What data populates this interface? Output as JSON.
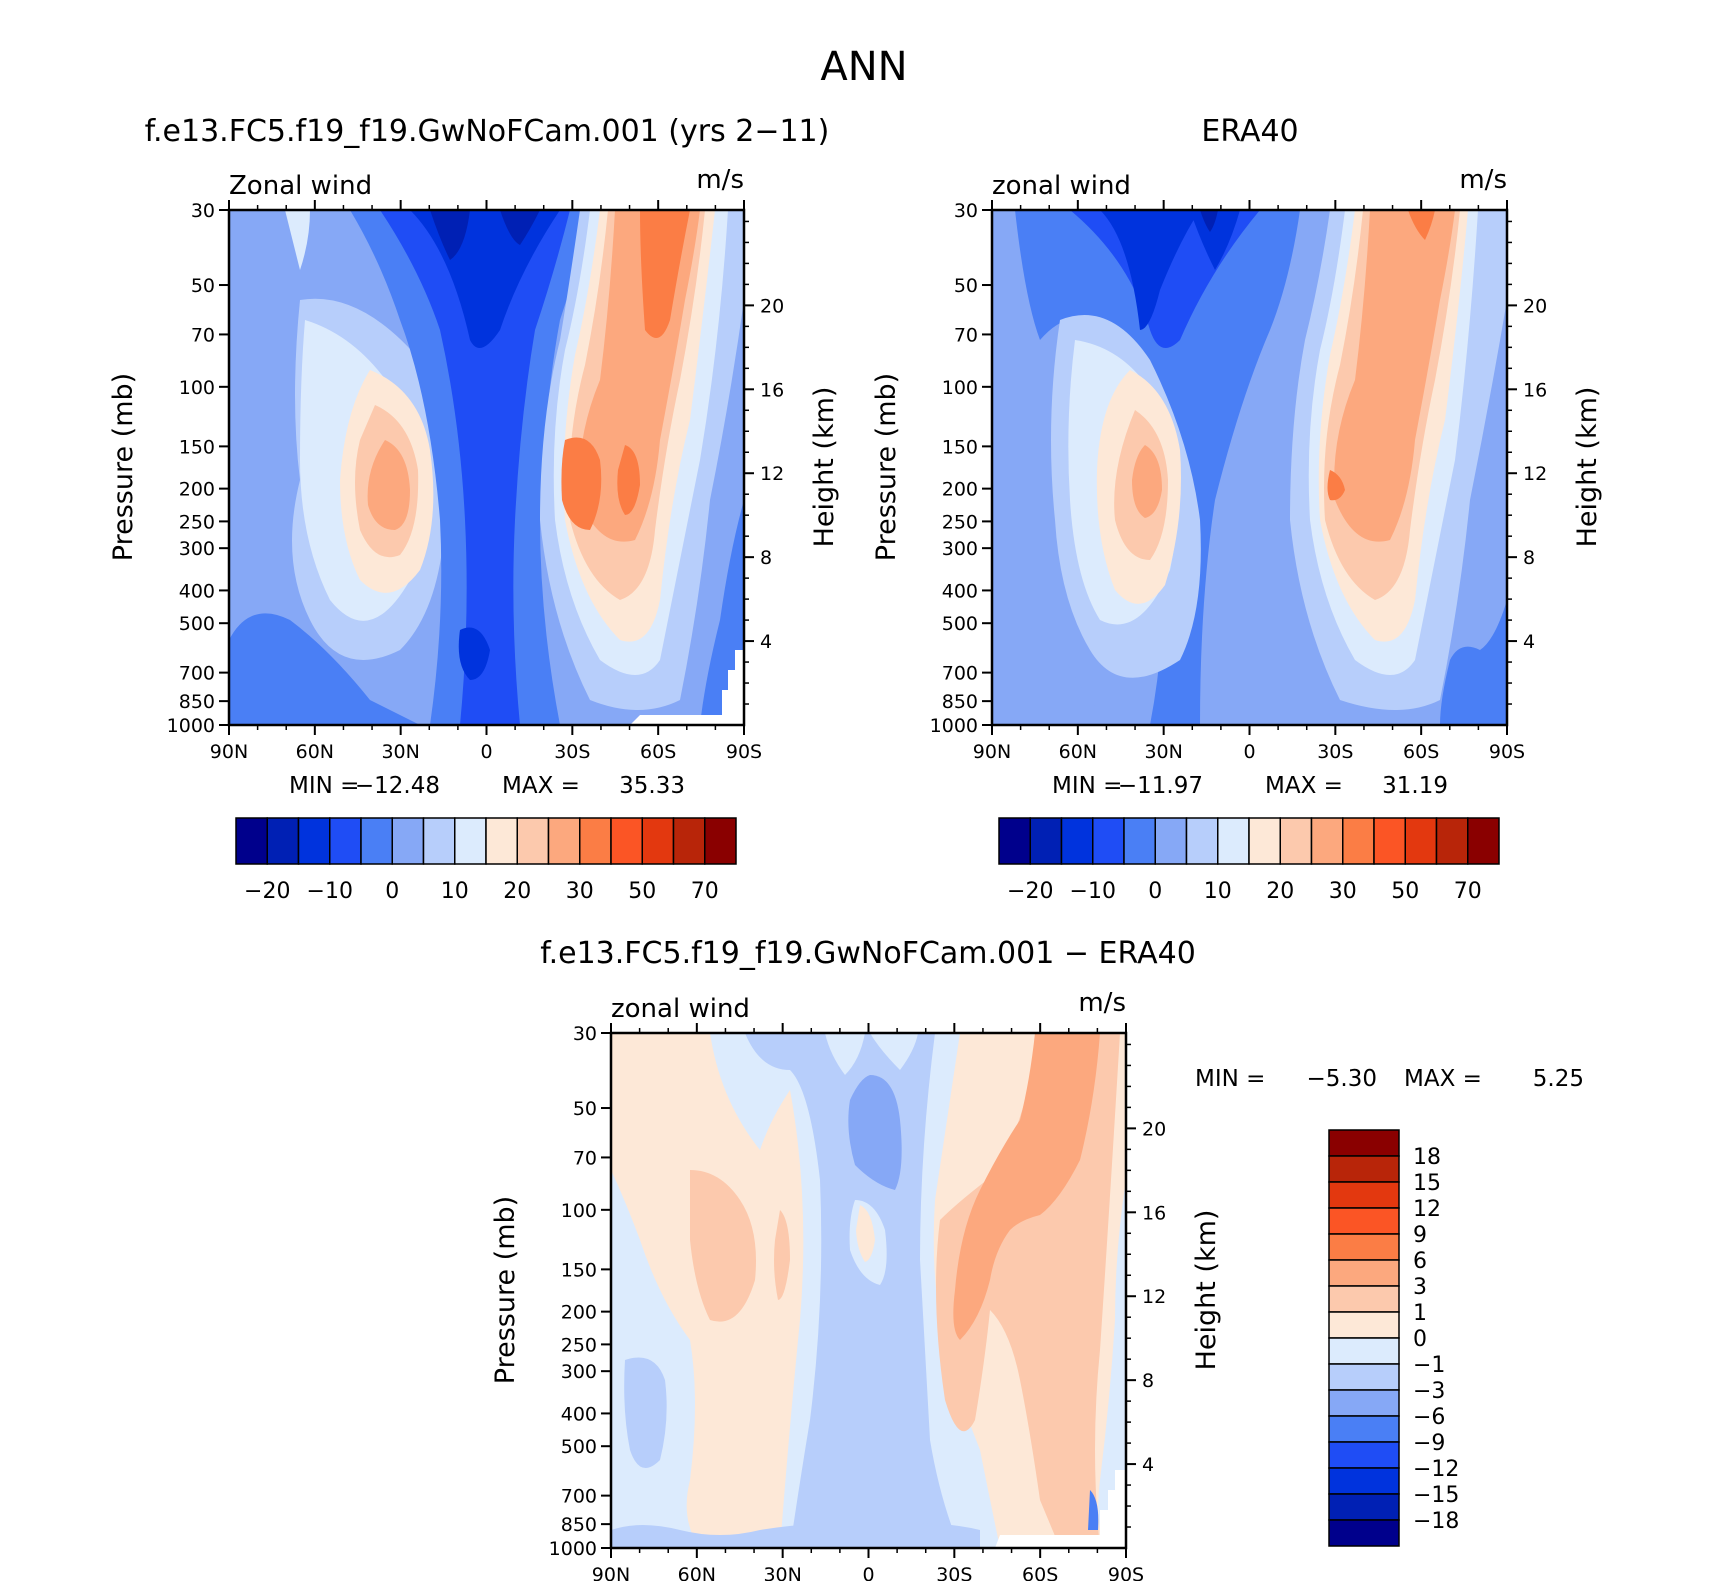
{
  "page_title": "ANN",
  "chart_data": [
    {
      "type": "contour",
      "title": "f.e13.FC5.f19_f19.GwNoFCam.001 (yrs 2−11)",
      "left_label": "Zonal wind",
      "right_label": "m/s",
      "xlabel": "",
      "ylabel": "Pressure (mb)",
      "y2label": "Height (km)",
      "x_ticks": [
        "90N",
        "60N",
        "30N",
        "0",
        "30S",
        "60S",
        "90S"
      ],
      "y_ticks": [
        30,
        50,
        70,
        100,
        150,
        200,
        250,
        300,
        400,
        500,
        700,
        850,
        1000
      ],
      "y2_ticks": [
        4,
        8,
        12,
        16,
        20
      ],
      "y_scale": "log",
      "ylim": [
        1000,
        30
      ],
      "xlim": [
        90,
        -90
      ],
      "min_label": "MIN =",
      "min_value": "−12.48",
      "max_label": "MAX =",
      "max_value": "35.33",
      "contour_levels": [
        -25,
        -20,
        -15,
        -10,
        -5,
        0,
        5,
        10,
        15,
        20,
        25,
        30,
        40,
        50,
        60,
        70
      ],
      "colorbar_labels": [
        "−20",
        "−10",
        "0",
        "10",
        "20",
        "30",
        "50",
        "70"
      ],
      "features": [
        {
          "kind": "jet",
          "lat": -40,
          "p": 200,
          "value": 35.33,
          "hemisphere": "SH"
        },
        {
          "kind": "jet",
          "lat": 35,
          "p": 200,
          "value": 30,
          "hemisphere": "NH"
        },
        {
          "kind": "easterly",
          "lat": 5,
          "p": 30,
          "value": -12.48
        }
      ]
    },
    {
      "type": "contour",
      "title": "ERA40",
      "left_label": "zonal wind",
      "right_label": "m/s",
      "xlabel": "",
      "ylabel": "Pressure (mb)",
      "y2label": "Height (km)",
      "x_ticks": [
        "90N",
        "60N",
        "30N",
        "0",
        "30S",
        "60S",
        "90S"
      ],
      "y_ticks": [
        30,
        50,
        70,
        100,
        150,
        200,
        250,
        300,
        400,
        500,
        700,
        850,
        1000
      ],
      "y2_ticks": [
        4,
        8,
        12,
        16,
        20
      ],
      "y_scale": "log",
      "ylim": [
        1000,
        30
      ],
      "xlim": [
        90,
        -90
      ],
      "min_label": "MIN =",
      "min_value": "−11.97",
      "max_label": "MAX =",
      "max_value": "31.19",
      "contour_levels": [
        -25,
        -20,
        -15,
        -10,
        -5,
        0,
        5,
        10,
        15,
        20,
        25,
        30,
        40,
        50,
        60,
        70
      ],
      "colorbar_labels": [
        "−20",
        "−10",
        "0",
        "10",
        "20",
        "30",
        "50",
        "70"
      ],
      "features": [
        {
          "kind": "jet",
          "lat": -40,
          "p": 200,
          "value": 31.19,
          "hemisphere": "SH"
        },
        {
          "kind": "jet",
          "lat": 35,
          "p": 200,
          "value": 28,
          "hemisphere": "NH"
        },
        {
          "kind": "easterly",
          "lat": 5,
          "p": 30,
          "value": -11.97
        }
      ]
    },
    {
      "type": "contour",
      "title": "f.e13.FC5.f19_f19.GwNoFCam.001 − ERA40",
      "left_label": "zonal wind",
      "right_label": "m/s",
      "xlabel": "",
      "ylabel": "Pressure (mb)",
      "y2label": "Height (km)",
      "x_ticks": [
        "90N",
        "60N",
        "30N",
        "0",
        "30S",
        "60S",
        "90S"
      ],
      "y_ticks": [
        30,
        50,
        70,
        100,
        150,
        200,
        250,
        300,
        400,
        500,
        700,
        850,
        1000
      ],
      "y2_ticks": [
        4,
        8,
        12,
        16,
        20
      ],
      "y_scale": "log",
      "ylim": [
        1000,
        30
      ],
      "xlim": [
        90,
        -90
      ],
      "min_label": "MIN =",
      "min_value": "−5.30",
      "max_label": "MAX =",
      "max_value": "5.25",
      "contour_levels": [
        -18,
        -15,
        -12,
        -9,
        -6,
        -3,
        -1,
        0,
        1,
        3,
        6,
        9,
        12,
        15,
        18
      ],
      "colorbar_labels": [
        "18",
        "15",
        "12",
        "9",
        "6",
        "3",
        "1",
        "0",
        "−1",
        "−3",
        "−6",
        "−9",
        "−12",
        "−15",
        "−18"
      ]
    }
  ],
  "colors": {
    "main_cmap": [
      "#00008c",
      "#0020b4",
      "#0033dd",
      "#1f4df5",
      "#4a7ff5",
      "#86a8f6",
      "#b7cefb",
      "#dcebfd",
      "#fde8d7",
      "#fcc9ad",
      "#fca87e",
      "#fb7d45",
      "#fb5525",
      "#e3380f",
      "#b82509",
      "#8a0000"
    ],
    "diff_cmap": [
      "#00008c",
      "#0020b4",
      "#0033dd",
      "#1f4df5",
      "#4a7ff5",
      "#86a8f6",
      "#b7cefb",
      "#dcebfd",
      "#fde8d7",
      "#fcc9ad",
      "#fca87e",
      "#fb7d45",
      "#fb5525",
      "#e3380f",
      "#b82509",
      "#8a0000"
    ]
  }
}
